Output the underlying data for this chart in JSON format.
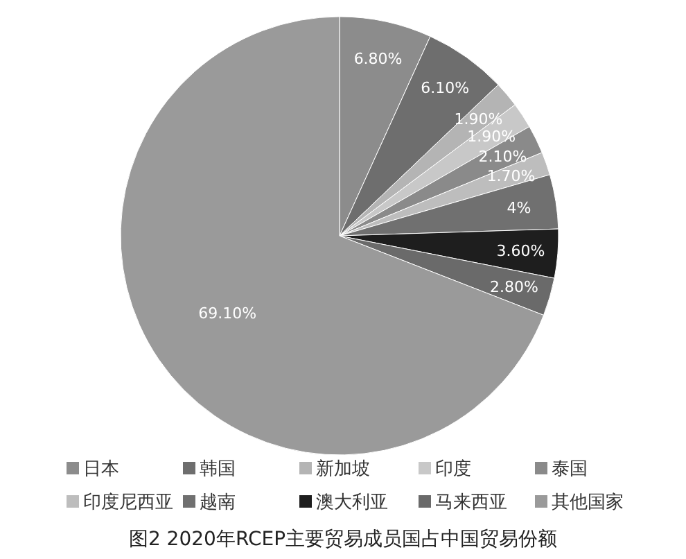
{
  "chart_data": {
    "type": "pie",
    "title": "图2  2020年RCEP主要贸易成员国占中国贸易份额",
    "categories": [
      "日本",
      "韩国",
      "新加坡",
      "印度",
      "泰国",
      "印度尼西亚",
      "越南",
      "澳大利亚",
      "马来西亚",
      "其他国家"
    ],
    "values": [
      6.8,
      6.1,
      1.9,
      1.9,
      2.1,
      1.7,
      4,
      3.6,
      2.8,
      69.1
    ],
    "value_labels": [
      "6.80%",
      "6.10%",
      "1.90%",
      "1.90%",
      "2.10%",
      "1.70%",
      "4%",
      "3.60%",
      "2.80%",
      "69.10%"
    ],
    "colors": [
      "#8c8c8c",
      "#6e6e6e",
      "#b4b4b4",
      "#c8c8c8",
      "#8a8a8a",
      "#bdbdbd",
      "#707070",
      "#1e1e1e",
      "#6a6a6a",
      "#9a9a9a"
    ],
    "legend": "bottom"
  }
}
